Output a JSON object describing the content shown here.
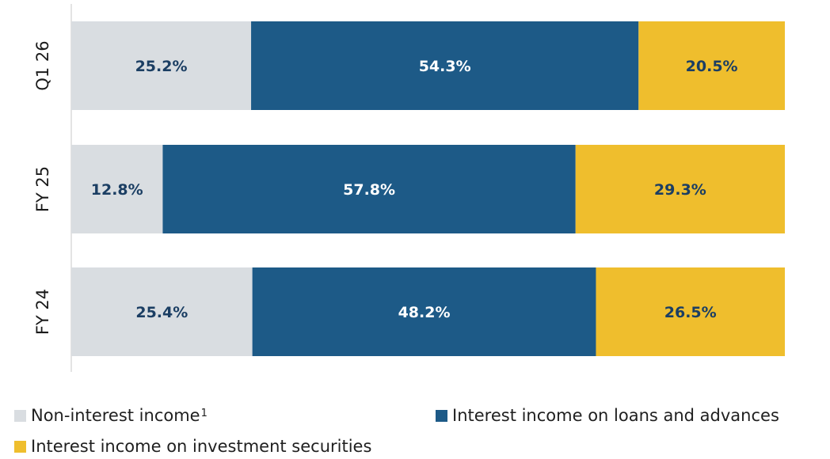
{
  "chart_data": {
    "type": "bar",
    "orientation": "horizontal",
    "stacked": true,
    "normalized_percent": true,
    "categories": [
      "Q1 26",
      "FY 25",
      "FY 24"
    ],
    "series": [
      {
        "name": "Non-interest income",
        "values": [
          25.2,
          12.8,
          25.4
        ],
        "labels": [
          "25.2%",
          "12.8%",
          "25.4%"
        ],
        "color": "#d9dde1",
        "label_color": "#1b3e63"
      },
      {
        "name": "Interest income on loans and advances",
        "values": [
          54.3,
          57.8,
          48.2
        ],
        "labels": [
          "54.3%",
          "57.8%",
          "48.2%"
        ],
        "color": "#1d5a87",
        "label_color": "#ffffff"
      },
      {
        "name": "Interest income on investment securities",
        "values": [
          20.5,
          29.3,
          26.5
        ],
        "labels": [
          "20.5%",
          "29.3%",
          "26.5%"
        ],
        "color": "#efbe2d",
        "label_color": "#1b3e63"
      }
    ],
    "xlim": [
      0,
      100
    ],
    "grid": false,
    "legend_position": "bottom"
  },
  "legend": {
    "items": [
      {
        "label": "Non-interest income",
        "footnote": "1",
        "color": "#d9dde1"
      },
      {
        "label": "Interest income on loans and advances",
        "footnote": "",
        "color": "#1d5a87"
      },
      {
        "label": "Interest income on investment securities",
        "footnote": "",
        "color": "#efbe2d"
      }
    ]
  }
}
